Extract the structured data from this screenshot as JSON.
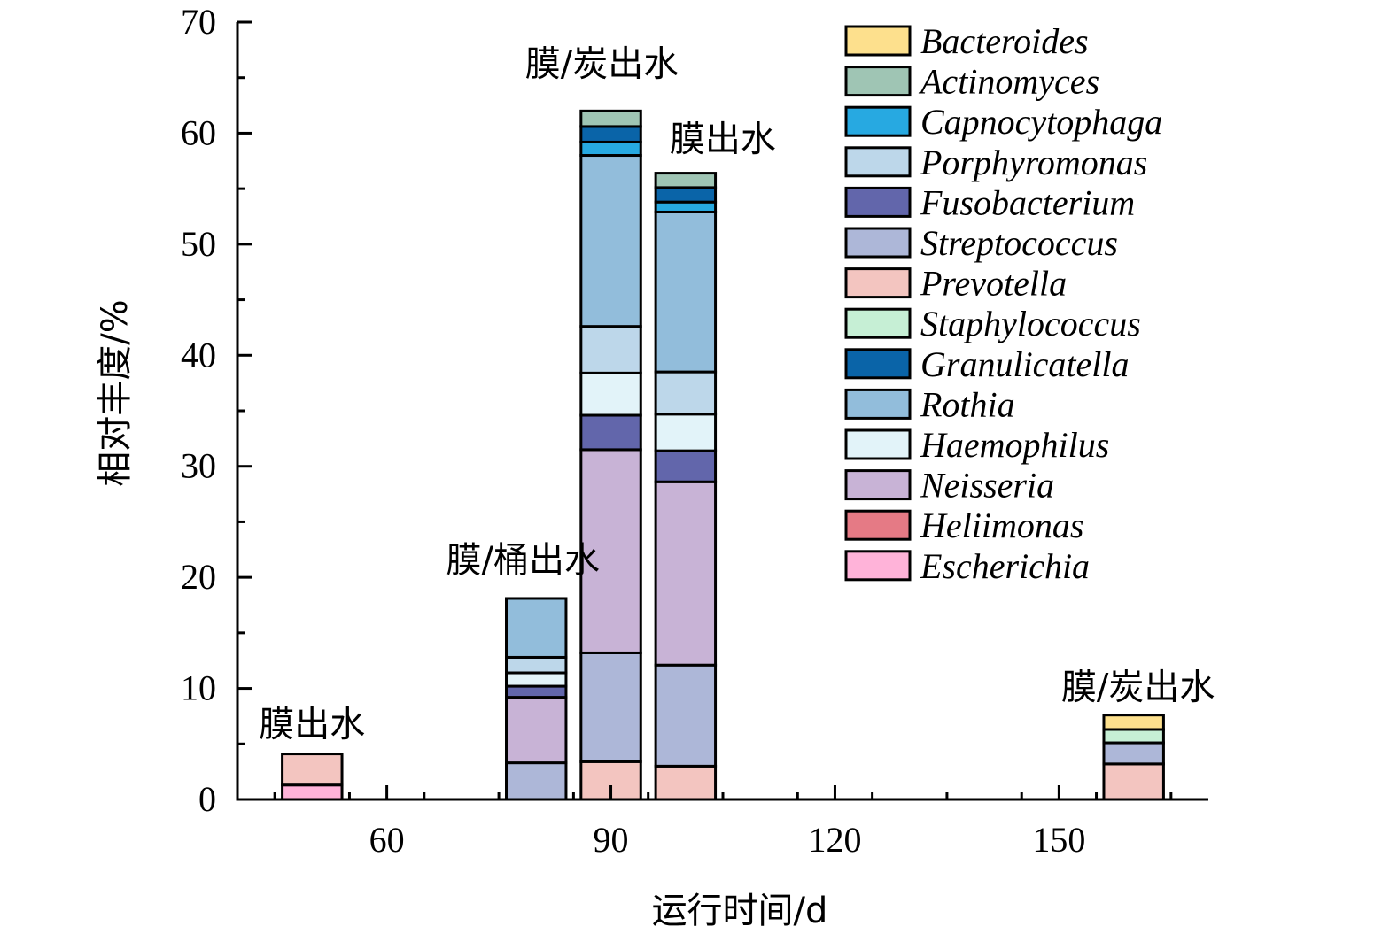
{
  "chart_data": {
    "type": "bar",
    "stacked": true,
    "xlabel": "运行时间/d",
    "ylabel": "相对丰度/%",
    "xlim": [
      40,
      170
    ],
    "ylim": [
      0,
      70
    ],
    "x_ticks": [
      60,
      90,
      120,
      150
    ],
    "y_ticks": [
      0,
      10,
      20,
      30,
      40,
      50,
      60,
      70
    ],
    "grid": false,
    "legend_position": "top-right",
    "bar_width_days": 8,
    "series": [
      {
        "name": "Escherichia",
        "color": "#FFB3D9"
      },
      {
        "name": "Heliimonas",
        "color": "#E57A85"
      },
      {
        "name": "Neisseria",
        "color": "#C8B3D6"
      },
      {
        "name": "Haemophilus",
        "color": "#E2F3F9"
      },
      {
        "name": "Rothia",
        "color": "#92BDDB"
      },
      {
        "name": "Granulicatella",
        "color": "#0A64A8"
      },
      {
        "name": "Staphylococcus",
        "color": "#C6EFD5"
      },
      {
        "name": "Prevotella",
        "color": "#F3C5C0"
      },
      {
        "name": "Streptococcus",
        "color": "#ADB7D8"
      },
      {
        "name": "Fusobacterium",
        "color": "#6266AB"
      },
      {
        "name": "Porphyromonas",
        "color": "#BDD7EA"
      },
      {
        "name": "Capnocytophaga",
        "color": "#27A9E1"
      },
      {
        "name": "Actinomyces",
        "color": "#9FC5B4"
      },
      {
        "name": "Bacteroides",
        "color": "#FDE08D"
      }
    ],
    "legend_order": [
      "Bacteroides",
      "Actinomyces",
      "Capnocytophaga",
      "Porphyromonas",
      "Fusobacterium",
      "Streptococcus",
      "Prevotella",
      "Staphylococcus",
      "Granulicatella",
      "Rothia",
      "Haemophilus",
      "Neisseria",
      "Heliimonas",
      "Escherichia"
    ],
    "bars": [
      {
        "x": 50,
        "label": "膜出水",
        "segments": [
          {
            "series": "Escherichia",
            "value": 1.3
          },
          {
            "series": "Prevotella",
            "value": 2.8
          }
        ]
      },
      {
        "x": 80,
        "label": "膜/桶出水",
        "segments": [
          {
            "series": "Streptococcus",
            "value": 3.3
          },
          {
            "series": "Neisseria",
            "value": 5.9
          },
          {
            "series": "Fusobacterium",
            "value": 1.0
          },
          {
            "series": "Haemophilus",
            "value": 1.2
          },
          {
            "series": "Porphyromonas",
            "value": 1.4
          },
          {
            "series": "Rothia",
            "value": 5.3
          }
        ]
      },
      {
        "x": 90,
        "label": "膜/炭出水",
        "segments": [
          {
            "series": "Prevotella",
            "value": 3.4
          },
          {
            "series": "Streptococcus",
            "value": 9.8
          },
          {
            "series": "Neisseria",
            "value": 18.3
          },
          {
            "series": "Fusobacterium",
            "value": 3.1
          },
          {
            "series": "Haemophilus",
            "value": 3.8
          },
          {
            "series": "Porphyromonas",
            "value": 4.2
          },
          {
            "series": "Rothia",
            "value": 15.4
          },
          {
            "series": "Capnocytophaga",
            "value": 1.2
          },
          {
            "series": "Granulicatella",
            "value": 1.4
          },
          {
            "series": "Actinomyces",
            "value": 1.4
          }
        ]
      },
      {
        "x": 100,
        "label": "膜出水",
        "segments": [
          {
            "series": "Prevotella",
            "value": 3.0
          },
          {
            "series": "Streptococcus",
            "value": 9.1
          },
          {
            "series": "Neisseria",
            "value": 16.5
          },
          {
            "series": "Fusobacterium",
            "value": 2.8
          },
          {
            "series": "Haemophilus",
            "value": 3.3
          },
          {
            "series": "Porphyromonas",
            "value": 3.8
          },
          {
            "series": "Rothia",
            "value": 14.4
          },
          {
            "series": "Capnocytophaga",
            "value": 0.9
          },
          {
            "series": "Granulicatella",
            "value": 1.3
          },
          {
            "series": "Actinomyces",
            "value": 1.3
          }
        ]
      },
      {
        "x": 160,
        "label": "膜/炭出水",
        "segments": [
          {
            "series": "Prevotella",
            "value": 3.2
          },
          {
            "series": "Streptococcus",
            "value": 1.9
          },
          {
            "series": "Staphylococcus",
            "value": 1.2
          },
          {
            "series": "Bacteroides",
            "value": 1.3
          }
        ]
      }
    ]
  }
}
